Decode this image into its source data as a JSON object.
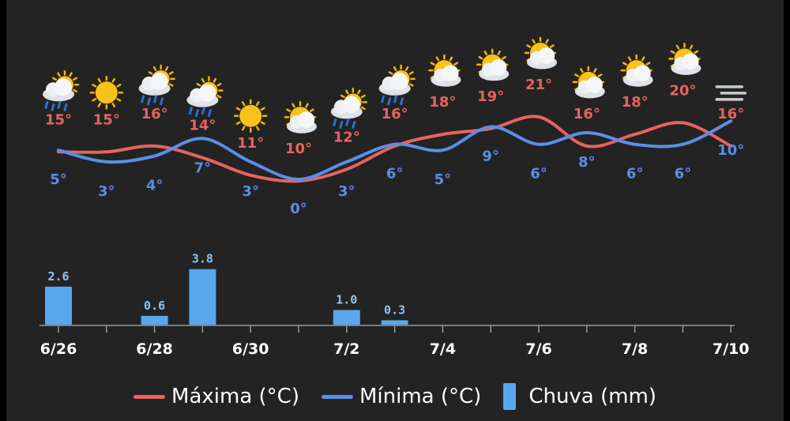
{
  "chart_data": {
    "type": "line",
    "x": [
      "6/26",
      "6/27",
      "6/28",
      "6/29",
      "6/30",
      "7/1",
      "7/2",
      "7/3",
      "7/4",
      "7/5",
      "7/6",
      "7/7",
      "7/8",
      "7/9",
      "7/10"
    ],
    "x_tick_labels": [
      "6/26",
      "6/28",
      "6/30",
      "7/2",
      "7/4",
      "7/6",
      "7/8",
      "7/10"
    ],
    "series": [
      {
        "name": "Máxima (°C)",
        "kind": "line",
        "color": "#e8635f",
        "values": [
          15,
          15,
          16,
          14,
          11,
          10,
          12,
          16,
          18,
          19,
          21,
          16,
          18,
          20,
          16
        ],
        "labels": [
          "15°",
          "15°",
          "16°",
          "14°",
          "11°",
          "10°",
          "12°",
          "16°",
          "18°",
          "19°",
          "21°",
          "16°",
          "18°",
          "20°",
          "16°"
        ]
      },
      {
        "name": "Mínima (°C)",
        "kind": "line",
        "color": "#5b8ee6",
        "values": [
          5,
          3,
          4,
          7,
          3,
          0,
          3,
          6,
          5,
          9,
          6,
          8,
          6,
          6,
          10
        ],
        "labels": [
          "5°",
          "3°",
          "4°",
          "7°",
          "3°",
          "0°",
          "3°",
          "6°",
          "5°",
          "9°",
          "6°",
          "8°",
          "6°",
          "6°",
          "10°"
        ]
      },
      {
        "name": "Chuva (mm)",
        "kind": "bar",
        "color": "#58a7ec",
        "values": [
          2.6,
          0,
          0.6,
          3.8,
          0,
          0,
          1.0,
          0.3,
          0,
          0,
          0,
          0,
          0,
          0,
          0
        ],
        "labels": [
          "2.6",
          "",
          "0.6",
          "3.8",
          "",
          "",
          "1.0",
          "0.3",
          "",
          "",
          "",
          "",
          "",
          "",
          ""
        ]
      }
    ],
    "weather_icons": [
      "sun-cloud-rain-icon",
      "sun-icon",
      "sun-cloud-rain-icon",
      "sun-cloud-rain-icon",
      "sun-icon",
      "sun-cloud-icon",
      "sun-cloud-rain-icon",
      "sun-cloud-rain-icon",
      "sun-cloud-icon",
      "sun-cloud-icon",
      "sun-cloud-icon",
      "sun-cloud-icon",
      "sun-cloud-icon",
      "sun-cloud-icon",
      "fog-icon"
    ],
    "legend_position": "bottom-center",
    "grid": false,
    "background": "#232323"
  },
  "legend": {
    "max_label": "Máxima (°C)",
    "min_label": "Mínima (°C)",
    "rain_label": "Chuva (mm)"
  }
}
